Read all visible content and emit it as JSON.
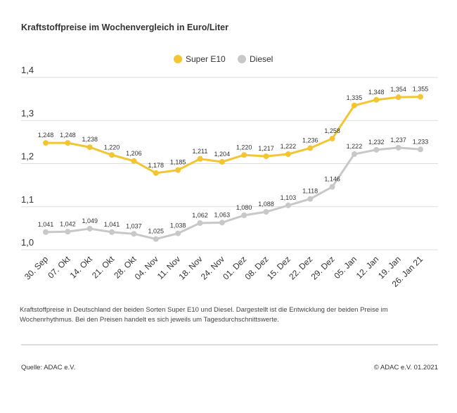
{
  "chart_data": {
    "type": "line",
    "title": "Kraftstoffpreise im Wochenvergleich in Euro/Liter",
    "categories": [
      "30. Sep",
      "07. Okt",
      "14. Okt",
      "21. Okt",
      "28. Okt",
      "04. Nov",
      "11. Nov",
      "18. Nov",
      "24. Nov",
      "01. Dez",
      "08. Dez",
      "15. Dez",
      "22. Dez",
      "29. Dez",
      "05. Jan",
      "12. Jan",
      "19. Jan",
      "26. Jan 21"
    ],
    "series": [
      {
        "name": "Super E10",
        "color": "#f2c531",
        "values": [
          1.248,
          1.248,
          1.238,
          1.22,
          1.206,
          1.178,
          1.185,
          1.211,
          1.204,
          1.22,
          1.217,
          1.222,
          1.236,
          1.258,
          1.335,
          1.348,
          1.354,
          1.355
        ],
        "value_labels": [
          "1,248",
          "1,248",
          "1,238",
          "1,220",
          "1,206",
          "1,178",
          "1,185",
          "1,211",
          "1,204",
          "1,220",
          "1,217",
          "1,222",
          "1,236",
          "1,258",
          "1,335",
          "1,348",
          "1,354",
          "1,355"
        ]
      },
      {
        "name": "Diesel",
        "color": "#c8c8c8",
        "values": [
          1.041,
          1.042,
          1.049,
          1.041,
          1.037,
          1.025,
          1.038,
          1.062,
          1.063,
          1.08,
          1.088,
          1.103,
          1.118,
          1.146,
          1.222,
          1.232,
          1.237,
          1.233
        ],
        "value_labels": [
          "1,041",
          "1,042",
          "1,049",
          "1,041",
          "1,037",
          "1,025",
          "1,038",
          "1,062",
          "1,063",
          "1,080",
          "1,088",
          "1,103",
          "1,118",
          "1,146",
          "1,222",
          "1,232",
          "1,237",
          "1,233"
        ]
      }
    ],
    "ylim": [
      1.0,
      1.4
    ],
    "yticks": [
      {
        "value": 1.0,
        "label": "1,0"
      },
      {
        "value": 1.1,
        "label": "1,1"
      },
      {
        "value": 1.2,
        "label": "1,2"
      },
      {
        "value": 1.3,
        "label": "1,3"
      },
      {
        "value": 1.4,
        "label": "1,4"
      }
    ],
    "grid": true,
    "footnote": "Kraftstoffpreise in Deutschland der beiden Sorten Super E10 und Diesel. Dargestellt ist die Entwicklung der beiden Preise im Wochenrhythmus. Bei den Preisen handelt es sich jeweils um Tagesdurchschnittswerte.",
    "source": "Quelle: ADAC e.V.",
    "copyright": "© ADAC e.V. 01.2021"
  }
}
